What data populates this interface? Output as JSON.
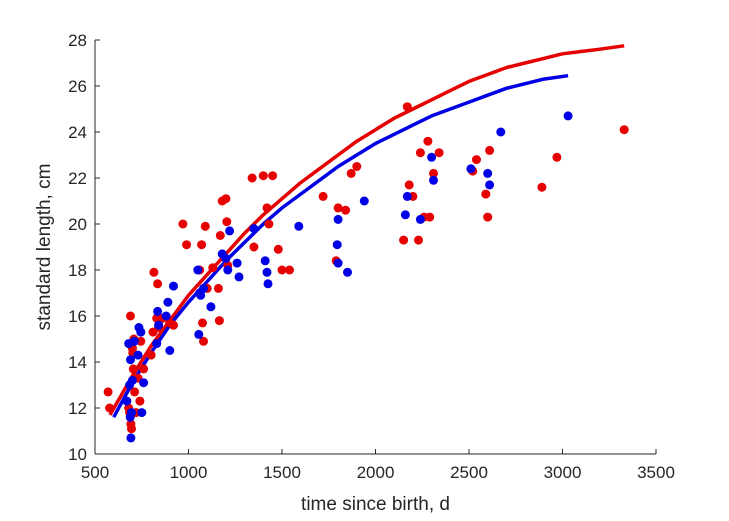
{
  "chart_data": {
    "type": "scatter",
    "title": "",
    "xlabel": "time since birth, d",
    "ylabel": "standard length, cm",
    "xlim": [
      500,
      3500
    ],
    "ylim": [
      10,
      28
    ],
    "xticks": [
      "500",
      "1000",
      "1500",
      "2000",
      "2500",
      "3000",
      "3500"
    ],
    "yticks": [
      "10",
      "12",
      "14",
      "16",
      "18",
      "20",
      "22",
      "24",
      "26",
      "28"
    ],
    "grid": false,
    "legend": "none",
    "series": [
      {
        "color": "#e60000",
        "points": [
          [
            570,
            12.7
          ],
          [
            578,
            12.0
          ],
          [
            680,
            12.0
          ],
          [
            685,
            11.8
          ],
          [
            690,
            16.0
          ],
          [
            692,
            11.3
          ],
          [
            695,
            11.1
          ],
          [
            700,
            14.6
          ],
          [
            702,
            14.4
          ],
          [
            705,
            13.7
          ],
          [
            708,
            15.0
          ],
          [
            712,
            12.7
          ],
          [
            720,
            11.8
          ],
          [
            730,
            13.3
          ],
          [
            740,
            12.3
          ],
          [
            745,
            14.9
          ],
          [
            760,
            13.7
          ],
          [
            800,
            14.3
          ],
          [
            810,
            15.3
          ],
          [
            815,
            17.9
          ],
          [
            830,
            15.9
          ],
          [
            835,
            17.4
          ],
          [
            840,
            15.5
          ],
          [
            860,
            15.9
          ],
          [
            900,
            15.7
          ],
          [
            920,
            15.6
          ],
          [
            970,
            20.0
          ],
          [
            990,
            19.1
          ],
          [
            1060,
            18.0
          ],
          [
            1070,
            19.1
          ],
          [
            1075,
            15.7
          ],
          [
            1080,
            14.9
          ],
          [
            1090,
            19.9
          ],
          [
            1100,
            17.2
          ],
          [
            1130,
            18.1
          ],
          [
            1160,
            17.2
          ],
          [
            1165,
            15.8
          ],
          [
            1170,
            19.5
          ],
          [
            1180,
            21.0
          ],
          [
            1200,
            21.1
          ],
          [
            1205,
            20.1
          ],
          [
            1210,
            18.2
          ],
          [
            1340,
            22.0
          ],
          [
            1350,
            19.0
          ],
          [
            1400,
            22.1
          ],
          [
            1420,
            20.7
          ],
          [
            1430,
            20.0
          ],
          [
            1450,
            22.1
          ],
          [
            1480,
            18.9
          ],
          [
            1500,
            18.0
          ],
          [
            1540,
            18.0
          ],
          [
            1720,
            21.2
          ],
          [
            1790,
            18.4
          ],
          [
            1800,
            20.7
          ],
          [
            1840,
            20.6
          ],
          [
            1870,
            22.2
          ],
          [
            1900,
            22.5
          ],
          [
            2150,
            19.3
          ],
          [
            2170,
            25.1
          ],
          [
            2180,
            21.7
          ],
          [
            2200,
            21.2
          ],
          [
            2230,
            19.3
          ],
          [
            2240,
            23.1
          ],
          [
            2260,
            20.3
          ],
          [
            2280,
            23.6
          ],
          [
            2290,
            20.3
          ],
          [
            2310,
            22.2
          ],
          [
            2340,
            23.1
          ],
          [
            2520,
            22.3
          ],
          [
            2540,
            22.8
          ],
          [
            2590,
            21.3
          ],
          [
            2600,
            20.3
          ],
          [
            2610,
            23.2
          ],
          [
            2890,
            21.6
          ],
          [
            2970,
            22.9
          ],
          [
            3330,
            24.1
          ]
        ],
        "fit": [
          [
            580,
            11.7
          ],
          [
            700,
            13.4
          ],
          [
            800,
            14.7
          ],
          [
            900,
            15.8
          ],
          [
            1000,
            16.9
          ],
          [
            1100,
            17.8
          ],
          [
            1200,
            18.7
          ],
          [
            1300,
            19.6
          ],
          [
            1400,
            20.4
          ],
          [
            1500,
            21.1
          ],
          [
            1600,
            21.8
          ],
          [
            1700,
            22.4
          ],
          [
            1800,
            23.0
          ],
          [
            1900,
            23.6
          ],
          [
            2000,
            24.1
          ],
          [
            2100,
            24.6
          ],
          [
            2200,
            25.0
          ],
          [
            2300,
            25.4
          ],
          [
            2400,
            25.8
          ],
          [
            2500,
            26.2
          ],
          [
            2600,
            26.5
          ],
          [
            2700,
            26.8
          ],
          [
            2800,
            27.0
          ],
          [
            2900,
            27.2
          ],
          [
            3000,
            27.4
          ],
          [
            3100,
            27.5
          ],
          [
            3200,
            27.6
          ],
          [
            3330,
            27.75
          ]
        ]
      },
      {
        "color": "#0000e6",
        "points": [
          [
            670,
            12.3
          ],
          [
            680,
            14.8
          ],
          [
            685,
            13.0
          ],
          [
            688,
            11.6
          ],
          [
            690,
            14.1
          ],
          [
            692,
            10.7
          ],
          [
            695,
            11.8
          ],
          [
            700,
            13.2
          ],
          [
            710,
            14.9
          ],
          [
            730,
            14.3
          ],
          [
            735,
            15.5
          ],
          [
            745,
            15.3
          ],
          [
            750,
            11.8
          ],
          [
            760,
            13.1
          ],
          [
            830,
            14.8
          ],
          [
            835,
            16.2
          ],
          [
            840,
            15.6
          ],
          [
            880,
            16.0
          ],
          [
            890,
            16.6
          ],
          [
            900,
            14.5
          ],
          [
            920,
            17.3
          ],
          [
            1050,
            18.0
          ],
          [
            1055,
            15.2
          ],
          [
            1060,
            17.0
          ],
          [
            1065,
            16.9
          ],
          [
            1080,
            17.2
          ],
          [
            1120,
            16.4
          ],
          [
            1180,
            18.7
          ],
          [
            1200,
            18.5
          ],
          [
            1210,
            18.0
          ],
          [
            1220,
            19.7
          ],
          [
            1260,
            18.3
          ],
          [
            1270,
            17.7
          ],
          [
            1350,
            19.8
          ],
          [
            1410,
            18.4
          ],
          [
            1420,
            17.9
          ],
          [
            1425,
            17.4
          ],
          [
            1590,
            19.9
          ],
          [
            1800,
            20.2
          ],
          [
            1795,
            19.1
          ],
          [
            1800,
            18.3
          ],
          [
            1850,
            17.9
          ],
          [
            1940,
            21.0
          ],
          [
            2160,
            20.4
          ],
          [
            2170,
            21.2
          ],
          [
            2240,
            20.2
          ],
          [
            2300,
            22.9
          ],
          [
            2310,
            21.9
          ],
          [
            2510,
            22.4
          ],
          [
            2600,
            22.2
          ],
          [
            2610,
            21.7
          ],
          [
            2670,
            24.0
          ],
          [
            3030,
            24.7
          ]
        ],
        "fit": [
          [
            600,
            11.6
          ],
          [
            700,
            13.1
          ],
          [
            800,
            14.4
          ],
          [
            900,
            15.6
          ],
          [
            1000,
            16.6
          ],
          [
            1100,
            17.5
          ],
          [
            1200,
            18.4
          ],
          [
            1300,
            19.2
          ],
          [
            1400,
            20.0
          ],
          [
            1500,
            20.7
          ],
          [
            1600,
            21.3
          ],
          [
            1700,
            21.9
          ],
          [
            1800,
            22.5
          ],
          [
            1900,
            23.0
          ],
          [
            2000,
            23.5
          ],
          [
            2100,
            23.9
          ],
          [
            2200,
            24.3
          ],
          [
            2300,
            24.7
          ],
          [
            2400,
            25.0
          ],
          [
            2500,
            25.3
          ],
          [
            2600,
            25.6
          ],
          [
            2700,
            25.9
          ],
          [
            2800,
            26.1
          ],
          [
            2900,
            26.3
          ],
          [
            3030,
            26.45
          ]
        ]
      }
    ]
  }
}
